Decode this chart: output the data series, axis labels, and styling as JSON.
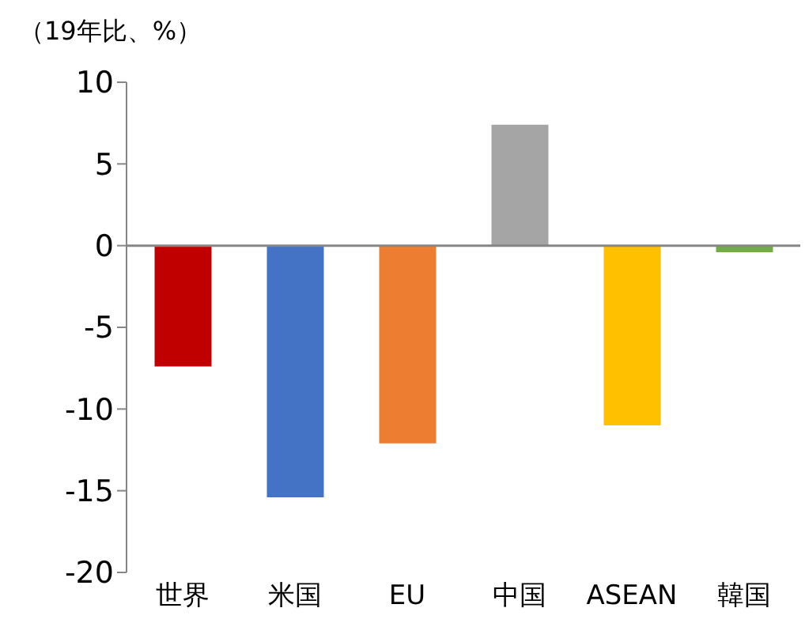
{
  "chart_data": {
    "type": "bar",
    "ylabel": "（19年比、%）",
    "categories": [
      "世界",
      "米国",
      "EU",
      "中国",
      "ASEAN",
      "韓国"
    ],
    "values": [
      -7.4,
      -15.4,
      -12.1,
      7.4,
      -11.0,
      -0.4
    ],
    "colors": [
      "#c00000",
      "#4472c4",
      "#ed7d31",
      "#a5a5a5",
      "#ffc000",
      "#70ad47"
    ],
    "ylim": [
      -20,
      10
    ],
    "yticks": [
      -20,
      -15,
      -10,
      -5,
      0,
      5,
      10
    ]
  }
}
